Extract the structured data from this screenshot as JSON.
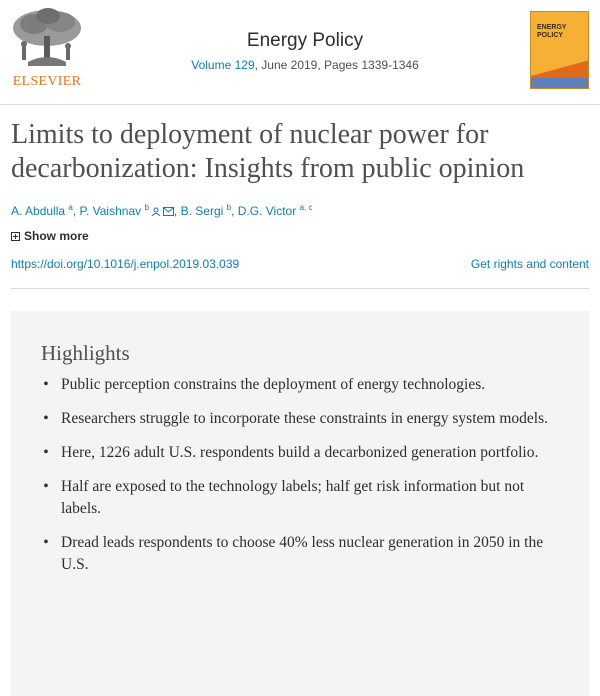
{
  "header": {
    "publisher": "ELSEVIER",
    "journal_title": "Energy Policy",
    "volume_link": "Volume 129",
    "issue_details": ", June 2019, Pages 1339-1346",
    "cover_title": "ENERGY POLICY"
  },
  "article": {
    "title": "Limits to deployment of nuclear power for decarbonization: Insights from public opinion",
    "authors": [
      {
        "name": "A. Abdulla",
        "sup": "a"
      },
      {
        "name": "P. Vaishnav",
        "sup": "b"
      },
      {
        "name": "B. Sergi",
        "sup": "b"
      },
      {
        "name": "D.G. Victor",
        "sup": "a, c"
      }
    ],
    "show_more": "Show more",
    "doi": "https://doi.org/10.1016/j.enpol.2019.03.039",
    "rights": "Get rights and content"
  },
  "highlights": {
    "heading": "Highlights",
    "bullet": "•",
    "items": [
      "Public perception constrains the deployment of energy technologies.",
      "Researchers struggle to incorporate these constraints in energy system models.",
      "Here, 1226 adult U.S. respondents build a decarbonized generation portfolio.",
      "Half are exposed to the technology labels; half get risk information but not labels.",
      "Dread leads respondents to choose 40% less nuclear generation in 2050 in the U.S."
    ]
  },
  "colors": {
    "link": "#0c7dbb",
    "publisher_orange": "#e9711c",
    "panel_bg": "#f4f4f4",
    "cover_orange": "#f5b035"
  },
  "icons": {
    "person": "person-icon",
    "envelope": "envelope-icon",
    "expand": "plus-box-icon",
    "logo": "elsevier-tree-logo"
  }
}
